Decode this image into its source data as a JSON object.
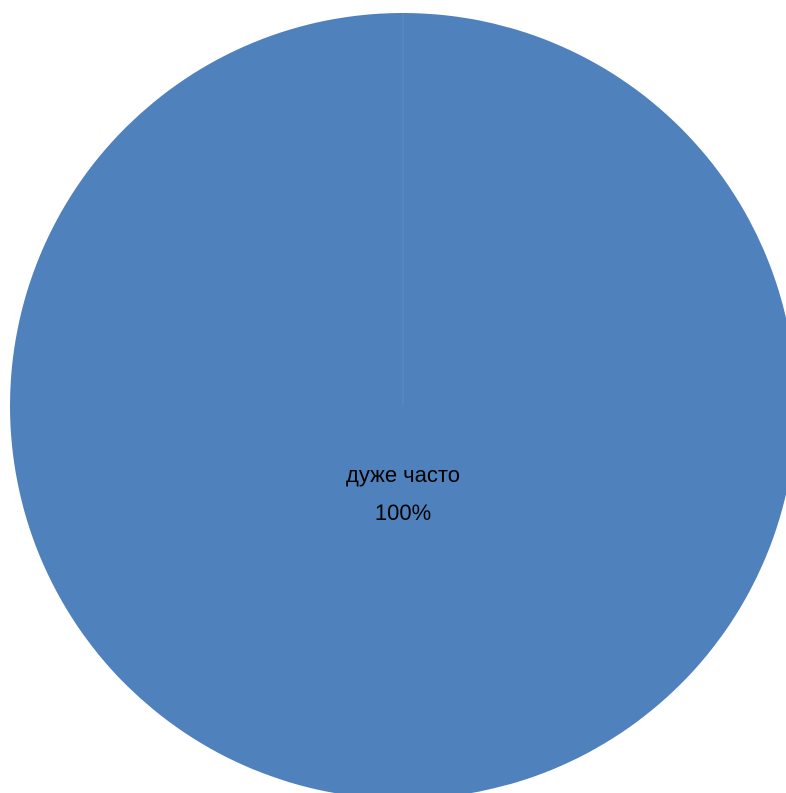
{
  "chart_data": {
    "type": "pie",
    "title": "",
    "slices": [
      {
        "label": "дуже часто",
        "value": 100,
        "display": "100%"
      }
    ],
    "legend": "none",
    "data_labels": "inside",
    "colors": {
      "slice": "#4F81BD",
      "border": "#5A8BC6",
      "background": "#FFFFFF"
    }
  }
}
